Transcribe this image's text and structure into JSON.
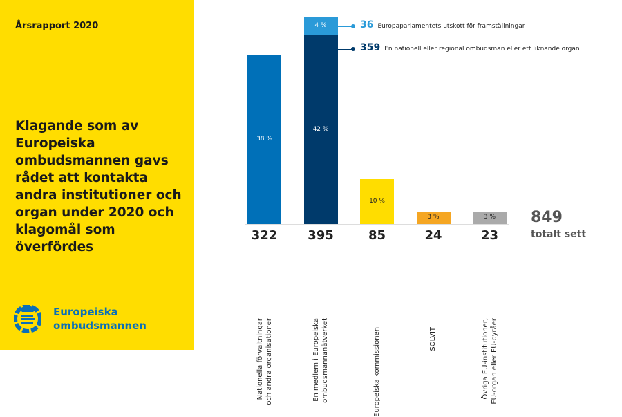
{
  "header": {
    "report": "Årsrapport 2020",
    "title": "Klagande som av Europeiska ombudsmannen gavs rådet att kontakta andra institutioner och organ under 2020 och klagomål som överfördes"
  },
  "logo": {
    "line1": "Europeiska",
    "line2": "ombudsmannen",
    "color": "#0a6fb7"
  },
  "chart_data": {
    "type": "bar",
    "categories": [
      "Nationella förvaltningar\noch andra organisationer",
      "En medlem i Europeiska\nombudsmannanätverket",
      "Europeiska kommissionen",
      "SOLVIT",
      "Övriga EU-institutioner,\nEU-organ eller EU-byråer"
    ],
    "values": [
      322,
      395,
      85,
      24,
      23
    ],
    "percent_labels": [
      "38 %",
      "42 %",
      "10 %",
      "3 %",
      "3 %"
    ],
    "colors": [
      "#0070b8",
      "#003a6b",
      "#ffdd00",
      "#f5a623",
      "#aaaaaa"
    ],
    "stacked_segments": {
      "category_index": 1,
      "segments": [
        {
          "value": 359,
          "label": "En nationell eller regional ombudsman eller ett liknande organ",
          "percent": "42 %",
          "color": "#003a6b"
        },
        {
          "value": 36,
          "label": "Europaparlamentets utskott för framställningar",
          "percent": "4 %",
          "color": "#2a9ad8"
        }
      ]
    },
    "total": {
      "value": "849",
      "label": "totalt sett"
    },
    "ylim": [
      0,
      395
    ]
  }
}
